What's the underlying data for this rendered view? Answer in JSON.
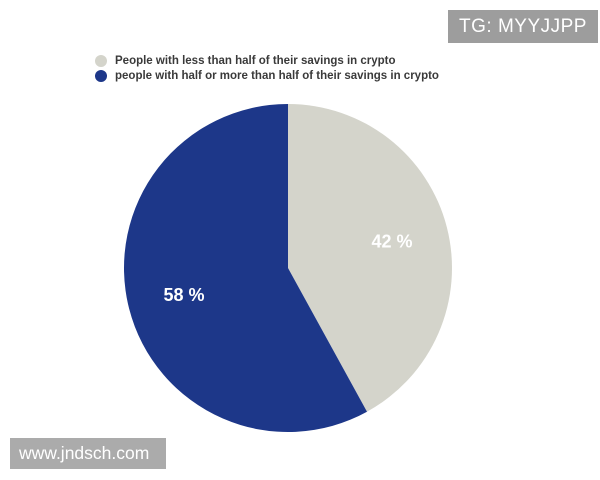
{
  "badges": {
    "top_right": "TG: MYYJJPP",
    "bottom_left": "www.jndsch.com"
  },
  "chart_data": {
    "type": "pie",
    "start_angle_deg": 0,
    "direction": "clockwise",
    "legend_position": "top-left",
    "value_label_color": "#ffffff",
    "slices": [
      {
        "label": "People with less than half of their savings in crypto",
        "value": 42,
        "display": "42 %",
        "color": "#d4d4cb"
      },
      {
        "label": "people with half or more than half of their savings in crypto",
        "value": 58,
        "display": "58 %",
        "color": "#1d3789"
      }
    ]
  },
  "colors": {
    "background": "#ffffff",
    "legend_text": "#3a3a3a",
    "tag_badge_bg": "#9d9d9d",
    "site_badge_bg": "#ababab"
  }
}
